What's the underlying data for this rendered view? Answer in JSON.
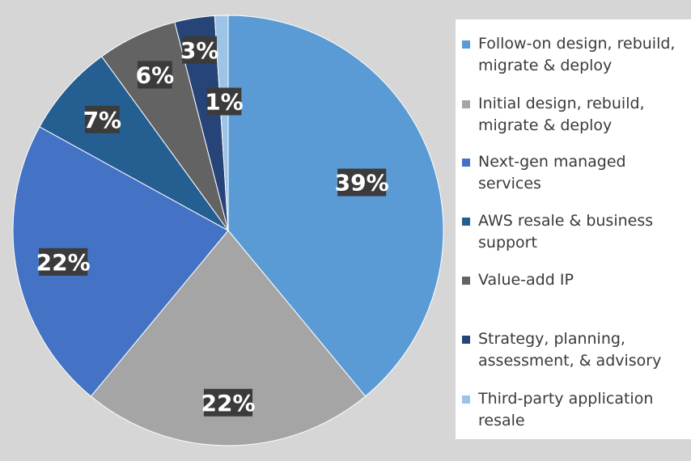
{
  "chart_data": {
    "type": "pie",
    "start_angle_deg": 0,
    "direction": "clockwise",
    "legend_position": "right",
    "slices": [
      {
        "name": "Follow-on design, rebuild, migrate & deploy",
        "value": 39,
        "label": "39%",
        "color": "#5b9bd5"
      },
      {
        "name": "Initial design, rebuild, migrate & deploy",
        "value": 22,
        "label": "22%",
        "color": "#a5a5a5"
      },
      {
        "name": "Next-gen managed services",
        "value": 22,
        "label": "22%",
        "color": "#4472c4"
      },
      {
        "name": "AWS resale & business support",
        "value": 7,
        "label": "7%",
        "color": "#255e91"
      },
      {
        "name": "Value-add IP",
        "value": 6,
        "label": "6%",
        "color": "#636363"
      },
      {
        "name": "Strategy, planning, assessment, & advisory",
        "value": 3,
        "label": "3%",
        "color": "#264478"
      },
      {
        "name": "Third-party application resale",
        "value": 1,
        "label": "1%",
        "color": "#9dc3e6"
      }
    ]
  }
}
